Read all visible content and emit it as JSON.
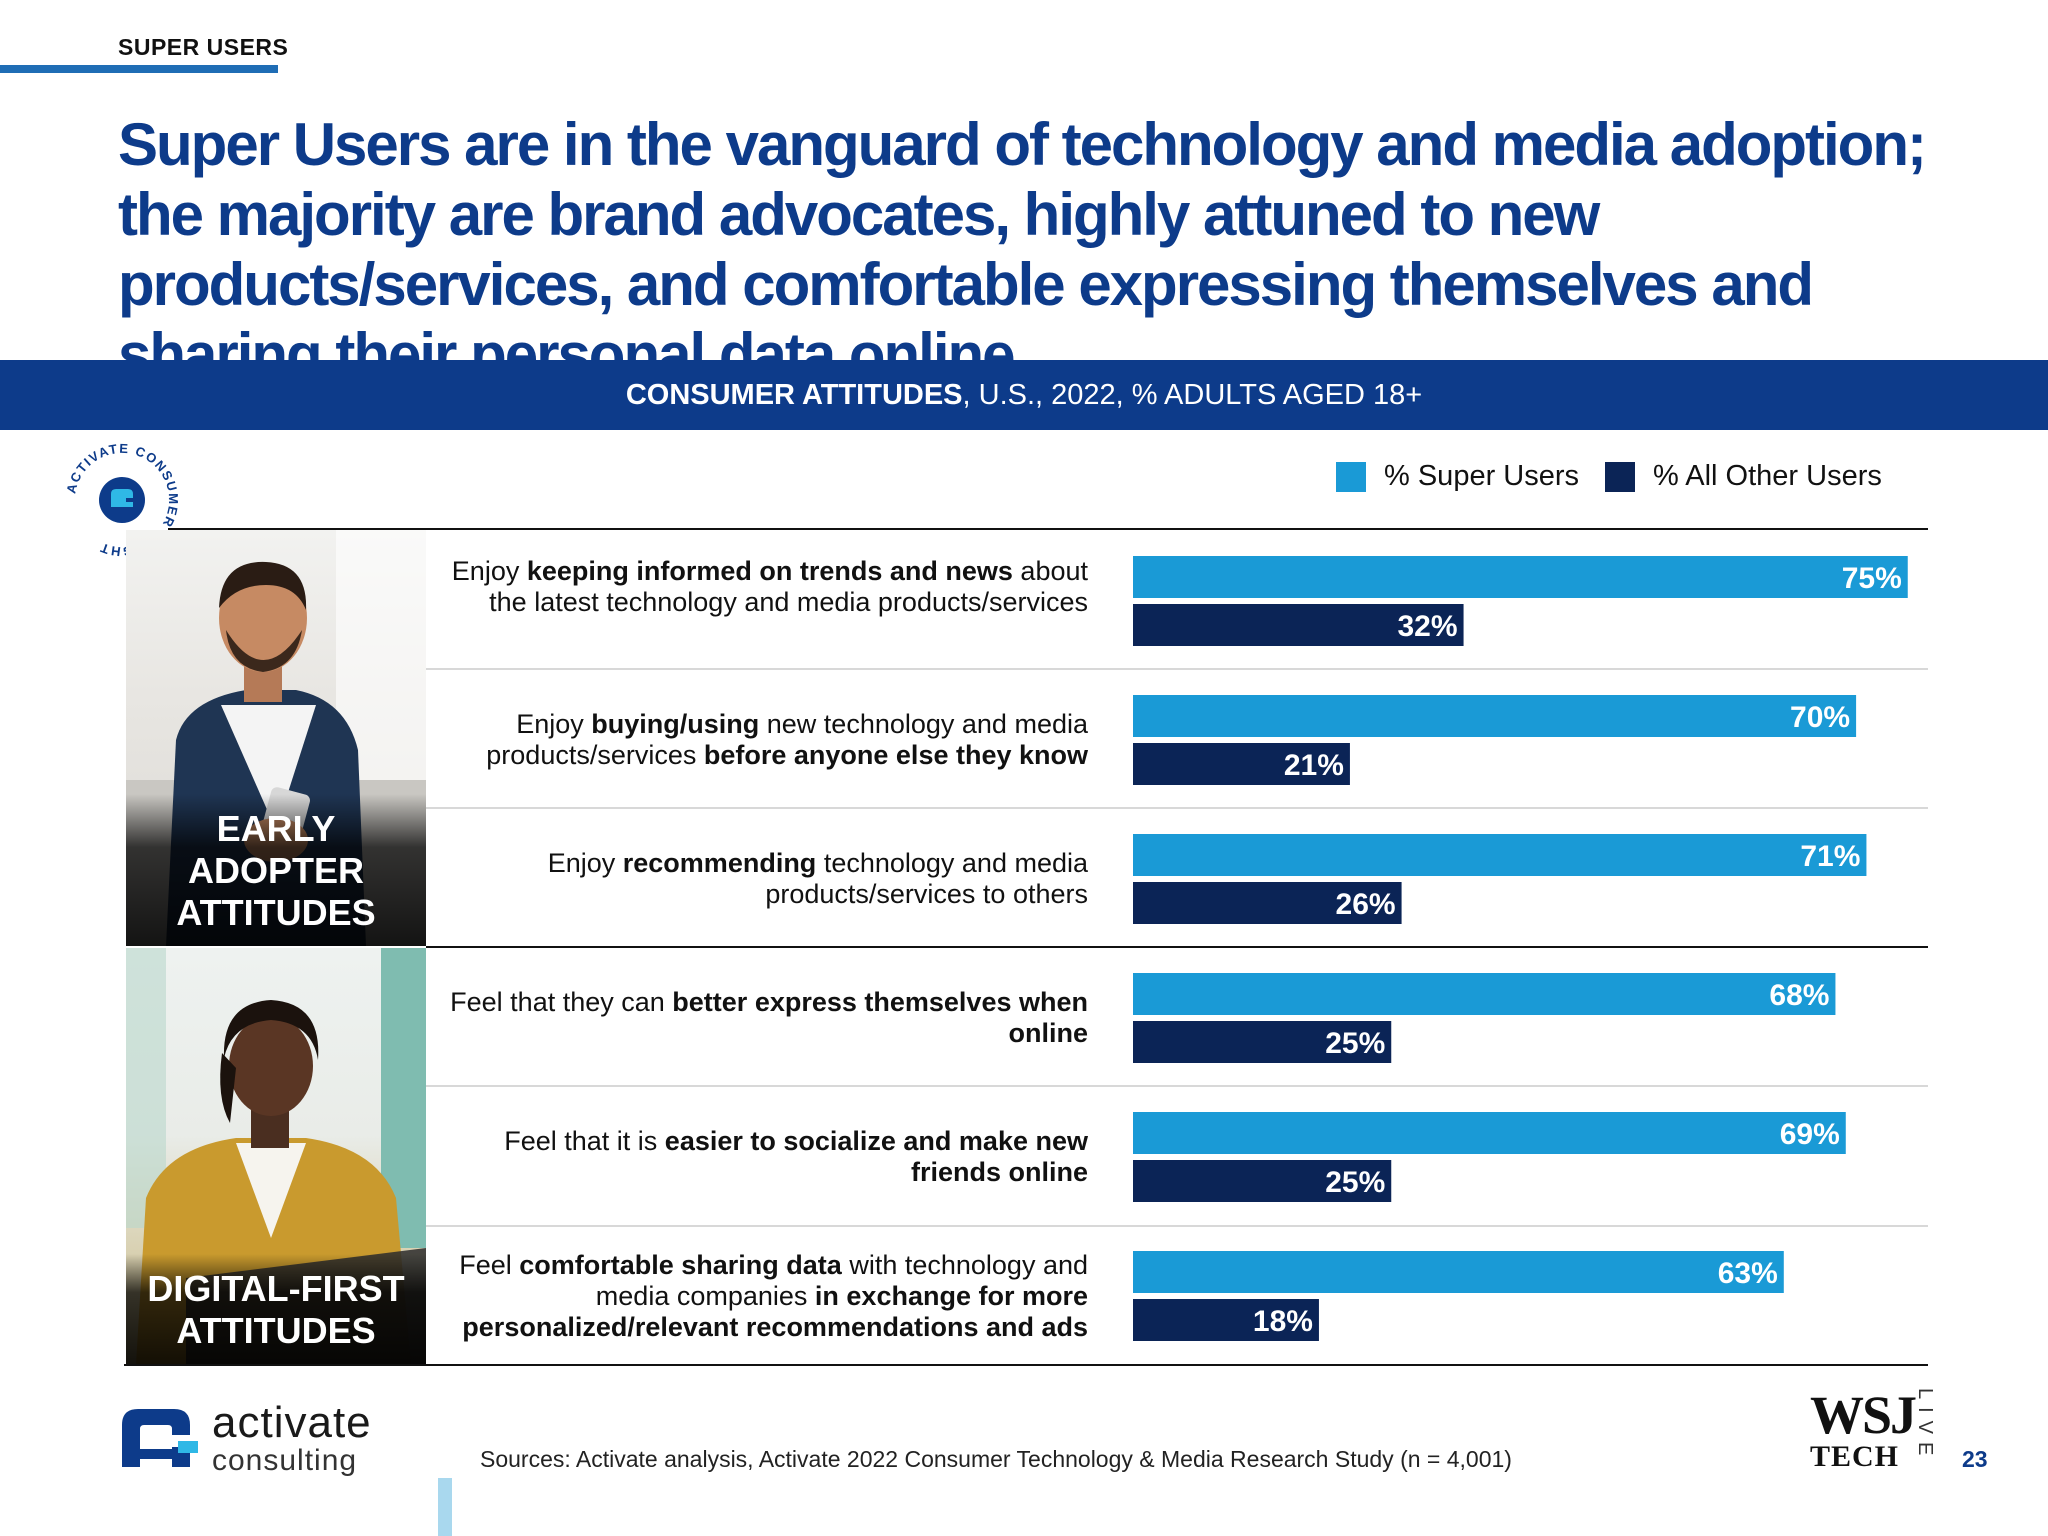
{
  "section_tag": "SUPER USERS",
  "headline": "Super Users are in the vanguard of technology and media adoption; the majority are brand advocates, highly attuned to new products/services, and comfortable expressing themselves and sharing their personal data online",
  "banner": {
    "bold": "CONSUMER ATTITUDES",
    "rest": ", U.S., 2022, % ADULTS AGED 18+"
  },
  "badge_text": "ACTIVATE CONSUMER INSIGHT",
  "legend": {
    "super": "% Super Users",
    "other": "% All Other Users"
  },
  "photo_captions": {
    "early": "EARLY ADOPTER ATTITUDES",
    "digital": "DIGITAL-FIRST ATTITUDES"
  },
  "row_labels": [
    [
      {
        "t": "Enjoy "
      },
      {
        "t": "keeping informed on trends and news",
        "b": true
      },
      {
        "t": " about the latest technology and media products/services"
      }
    ],
    [
      {
        "t": "Enjoy "
      },
      {
        "t": "buying/using",
        "b": true
      },
      {
        "t": " new technology and media products/services "
      },
      {
        "t": "before anyone else they know",
        "b": true
      }
    ],
    [
      {
        "t": "Enjoy "
      },
      {
        "t": "recommending",
        "b": true
      },
      {
        "t": " technology and media products/services to others"
      }
    ],
    [
      {
        "t": "Feel that they can "
      },
      {
        "t": "better express themselves when online",
        "b": true
      }
    ],
    [
      {
        "t": "Feel that it is "
      },
      {
        "t": "easier to socialize and make new friends online",
        "b": true
      }
    ],
    [
      {
        "t": "Feel "
      },
      {
        "t": "comfortable sharing data",
        "b": true
      },
      {
        "t": " with technology and media companies "
      },
      {
        "t": "in exchange for more personalized/relevant recommendations and ads",
        "b": true
      }
    ]
  ],
  "chart_data": {
    "type": "bar",
    "orientation": "horizontal",
    "categories": [
      "Enjoy keeping informed on trends and news about the latest technology and media products/services",
      "Enjoy buying/using new technology and media products/services before anyone else they know",
      "Enjoy recommending technology and media products/services to others",
      "Feel that they can better express themselves when online",
      "Feel that it is easier to socialize and make new friends online",
      "Feel comfortable sharing data with technology and media companies in exchange for more personalized/relevant recommendations and ads"
    ],
    "series": [
      {
        "name": "% Super Users",
        "color": "#1a9ad6",
        "values": [
          75,
          70,
          71,
          68,
          69,
          63
        ]
      },
      {
        "name": "% All Other Users",
        "color": "#0b2456",
        "values": [
          32,
          21,
          26,
          25,
          25,
          18
        ]
      }
    ],
    "value_suffix": "%",
    "xlim": [
      0,
      100
    ],
    "groups": [
      {
        "name": "EARLY ADOPTER ATTITUDES",
        "rows": [
          0,
          1,
          2
        ]
      },
      {
        "name": "DIGITAL-FIRST ATTITUDES",
        "rows": [
          3,
          4,
          5
        ]
      }
    ],
    "title": "CONSUMER ATTITUDES, U.S., 2022, % ADULTS AGED 18+",
    "grid": false,
    "legend_position": "top-right"
  },
  "colors": {
    "brand_blue": "#0d3b8a",
    "super_users": "#1a9ad6",
    "other_users": "#0b2456"
  },
  "footer": {
    "logo_word1": "activate",
    "logo_word2": "consulting",
    "source": "Sources: Activate analysis, Activate 2022 Consumer Technology & Media Research Study (n = 4,001)",
    "wsj_line1": "WSJ",
    "wsj_line2": "TECH",
    "wsj_live": "LIVE",
    "page_number": "23"
  }
}
